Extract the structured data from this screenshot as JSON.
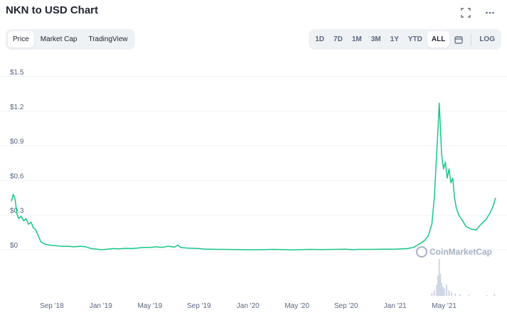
{
  "header": {
    "title": "NKN to USD Chart"
  },
  "tabs": [
    {
      "label": "Price",
      "active": true
    },
    {
      "label": "Market Cap",
      "active": false
    },
    {
      "label": "TradingView",
      "active": false
    }
  ],
  "ranges": [
    {
      "label": "1D",
      "active": false
    },
    {
      "label": "7D",
      "active": false
    },
    {
      "label": "1M",
      "active": false
    },
    {
      "label": "3M",
      "active": false
    },
    {
      "label": "1Y",
      "active": false
    },
    {
      "label": "YTD",
      "active": false
    },
    {
      "label": "ALL",
      "active": true
    }
  ],
  "log_label": "LOG",
  "icons": {
    "fullscreen": "fullscreen-icon",
    "more": "more-icon",
    "calendar": "calendar-icon"
  },
  "watermark": "CoinMarketCap",
  "colors": {
    "line": "#16c784",
    "volume": "#cfd6e4",
    "grid": "#eff2f5",
    "accent_text": "#58667e"
  },
  "chart_data": {
    "type": "line",
    "title": "NKN to USD Chart",
    "ylim": [
      0,
      1.5
    ],
    "y_ticks": [
      "$0",
      "$0.3",
      "$0.6",
      "$0.9",
      "$1.2",
      "$1.5"
    ],
    "y_tick_values": [
      0,
      0.3,
      0.6,
      0.9,
      1.2,
      1.5
    ],
    "x_ticks": [
      "Sep '18",
      "Jan '19",
      "May '19",
      "Sep '19",
      "Jan '20",
      "May '20",
      "Sep '20",
      "Jan '21",
      "May '21"
    ],
    "x_tick_values": [
      8.0,
      12.0,
      16.0,
      20.0,
      24.0,
      28.0,
      32.0,
      36.0,
      40.0
    ],
    "x_unit": "months since 2018-01",
    "xlim": [
      4.7,
      44.2
    ],
    "series": [
      {
        "values": [
          [
            4.7,
            0.42
          ],
          [
            4.85,
            0.48
          ],
          [
            5.0,
            0.44
          ],
          [
            5.15,
            0.31
          ],
          [
            5.3,
            0.27
          ],
          [
            5.5,
            0.29
          ],
          [
            5.7,
            0.25
          ],
          [
            5.9,
            0.27
          ],
          [
            6.1,
            0.22
          ],
          [
            6.3,
            0.24
          ],
          [
            6.5,
            0.19
          ],
          [
            6.7,
            0.17
          ],
          [
            6.9,
            0.12
          ],
          [
            7.1,
            0.07
          ],
          [
            7.4,
            0.05
          ],
          [
            7.8,
            0.04
          ],
          [
            8.3,
            0.035
          ],
          [
            8.8,
            0.03
          ],
          [
            9.3,
            0.03
          ],
          [
            9.8,
            0.025
          ],
          [
            10.3,
            0.03
          ],
          [
            10.8,
            0.025
          ],
          [
            11.2,
            0.01
          ],
          [
            11.7,
            0.005
          ],
          [
            12.0,
            0.0
          ],
          [
            12.5,
            0.005
          ],
          [
            13.0,
            0.01
          ],
          [
            13.5,
            0.008
          ],
          [
            14.0,
            0.012
          ],
          [
            14.5,
            0.01
          ],
          [
            15.0,
            0.015
          ],
          [
            15.5,
            0.02
          ],
          [
            16.0,
            0.02
          ],
          [
            16.5,
            0.025
          ],
          [
            17.0,
            0.02
          ],
          [
            17.5,
            0.03
          ],
          [
            18.0,
            0.022
          ],
          [
            18.3,
            0.04
          ],
          [
            18.5,
            0.02
          ],
          [
            19.0,
            0.015
          ],
          [
            19.5,
            0.012
          ],
          [
            20.0,
            0.01
          ],
          [
            20.5,
            0.005
          ],
          [
            21.0,
            0.005
          ],
          [
            21.5,
            0.003
          ],
          [
            22.0,
            0.003
          ],
          [
            23.0,
            0.002
          ],
          [
            24.0,
            0.0
          ],
          [
            25.0,
            0.0
          ],
          [
            26.0,
            0.003
          ],
          [
            26.8,
            0.002
          ],
          [
            27.5,
            -0.002
          ],
          [
            28.0,
            0.0
          ],
          [
            29.0,
            0.003
          ],
          [
            30.0,
            0.002
          ],
          [
            31.0,
            0.003
          ],
          [
            32.0,
            0.005
          ],
          [
            32.5,
            0.0
          ],
          [
            33.0,
            0.003
          ],
          [
            34.0,
            0.003
          ],
          [
            35.0,
            0.005
          ],
          [
            36.0,
            0.005
          ],
          [
            37.0,
            0.01
          ],
          [
            37.5,
            0.02
          ],
          [
            38.0,
            0.05
          ],
          [
            38.4,
            0.08
          ],
          [
            38.7,
            0.12
          ],
          [
            39.0,
            0.22
          ],
          [
            39.2,
            0.45
          ],
          [
            39.35,
            0.75
          ],
          [
            39.5,
            1.05
          ],
          [
            39.6,
            1.27
          ],
          [
            39.7,
            1.05
          ],
          [
            39.8,
            0.82
          ],
          [
            39.95,
            0.7
          ],
          [
            40.1,
            0.76
          ],
          [
            40.25,
            0.62
          ],
          [
            40.4,
            0.7
          ],
          [
            40.55,
            0.58
          ],
          [
            40.7,
            0.62
          ],
          [
            40.85,
            0.45
          ],
          [
            41.0,
            0.36
          ],
          [
            41.2,
            0.3
          ],
          [
            41.5,
            0.25
          ],
          [
            41.8,
            0.2
          ],
          [
            42.2,
            0.18
          ],
          [
            42.6,
            0.17
          ],
          [
            43.0,
            0.22
          ],
          [
            43.4,
            0.26
          ],
          [
            43.7,
            0.31
          ],
          [
            44.0,
            0.38
          ],
          [
            44.2,
            0.45
          ]
        ]
      }
    ],
    "volume": [
      [
        39.0,
        0.08
      ],
      [
        39.2,
        0.15
      ],
      [
        39.4,
        0.3
      ],
      [
        39.5,
        0.55
      ],
      [
        39.6,
        1.0
      ],
      [
        39.7,
        0.6
      ],
      [
        39.8,
        0.35
      ],
      [
        39.9,
        0.25
      ],
      [
        40.0,
        0.2
      ],
      [
        40.2,
        0.3
      ],
      [
        40.4,
        0.15
      ],
      [
        40.6,
        0.1
      ],
      [
        40.9,
        0.06
      ],
      [
        41.3,
        0.04
      ],
      [
        42.0,
        0.03
      ],
      [
        43.5,
        0.02
      ],
      [
        44.1,
        0.05
      ]
    ],
    "grid": true
  }
}
